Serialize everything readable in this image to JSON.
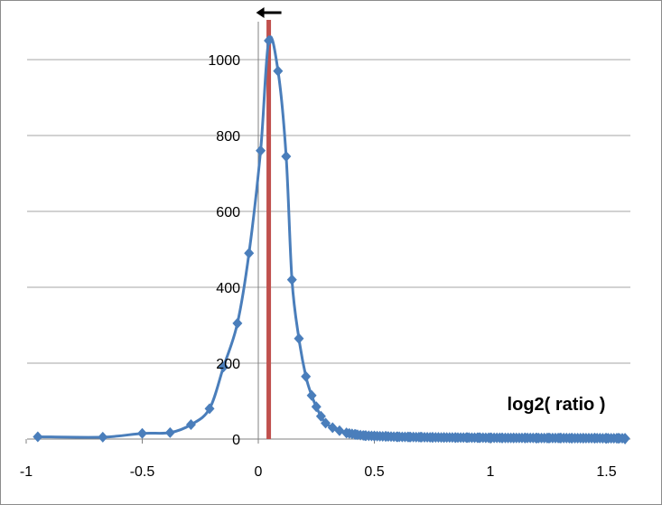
{
  "chart_data": {
    "type": "line",
    "title": "",
    "xlabel": "log2( ratio )",
    "ylabel": "",
    "xlim": [
      -1,
      1.6
    ],
    "ylim": [
      0,
      1100
    ],
    "x_ticks": [
      -1,
      -0.5,
      0,
      0.5,
      1,
      1.5
    ],
    "x_tick_labels": [
      "-1",
      "-0.5",
      "0",
      "0.5",
      "1",
      "1.5"
    ],
    "y_ticks": [
      0,
      200,
      400,
      600,
      800,
      1000
    ],
    "y_tick_labels": [
      "0",
      "200",
      "400",
      "600",
      "800",
      "1000"
    ],
    "grid": {
      "horizontal": true,
      "vertical": false
    },
    "legend": "none",
    "series": [
      {
        "color": "#4a7ebb",
        "marker": "diamond",
        "smooth": true,
        "points": [
          [
            -0.95,
            6
          ],
          [
            -0.67,
            5
          ],
          [
            -0.5,
            15
          ],
          [
            -0.38,
            17
          ],
          [
            -0.29,
            38
          ],
          [
            -0.21,
            80
          ],
          [
            -0.15,
            190
          ],
          [
            -0.09,
            305
          ],
          [
            -0.04,
            490
          ],
          [
            0.01,
            760
          ],
          [
            0.045,
            1050
          ],
          [
            0.085,
            970
          ],
          [
            0.12,
            745
          ],
          [
            0.145,
            420
          ],
          [
            0.175,
            265
          ],
          [
            0.205,
            165
          ],
          [
            0.23,
            115
          ],
          [
            0.25,
            85
          ],
          [
            0.27,
            60
          ],
          [
            0.29,
            42
          ],
          [
            0.32,
            30
          ],
          [
            0.35,
            22
          ],
          [
            0.38,
            16
          ],
          [
            0.42,
            12
          ],
          [
            0.46,
            9
          ],
          [
            0.5,
            8
          ],
          [
            0.55,
            7
          ],
          [
            0.6,
            6
          ],
          [
            0.65,
            5.5
          ],
          [
            0.7,
            5
          ],
          [
            0.75,
            4.5
          ],
          [
            0.8,
            4.2
          ],
          [
            0.85,
            4
          ],
          [
            0.9,
            3.8
          ],
          [
            0.95,
            3.5
          ],
          [
            1.0,
            3.3
          ],
          [
            1.05,
            3.1
          ],
          [
            1.1,
            3
          ],
          [
            1.15,
            2.9
          ],
          [
            1.2,
            2.8
          ],
          [
            1.25,
            2.7
          ],
          [
            1.3,
            2.6
          ],
          [
            1.35,
            2.5
          ],
          [
            1.4,
            2.4
          ],
          [
            1.45,
            2.3
          ],
          [
            1.5,
            2.2
          ],
          [
            1.55,
            2.1
          ],
          [
            1.58,
            2
          ]
        ]
      }
    ],
    "annotations": [
      {
        "type": "vertical-line",
        "x": 0.045,
        "y_range": [
          0,
          1100
        ],
        "color": "#c0504d"
      },
      {
        "type": "arrow",
        "direction": "left",
        "color": "#000000"
      }
    ]
  }
}
